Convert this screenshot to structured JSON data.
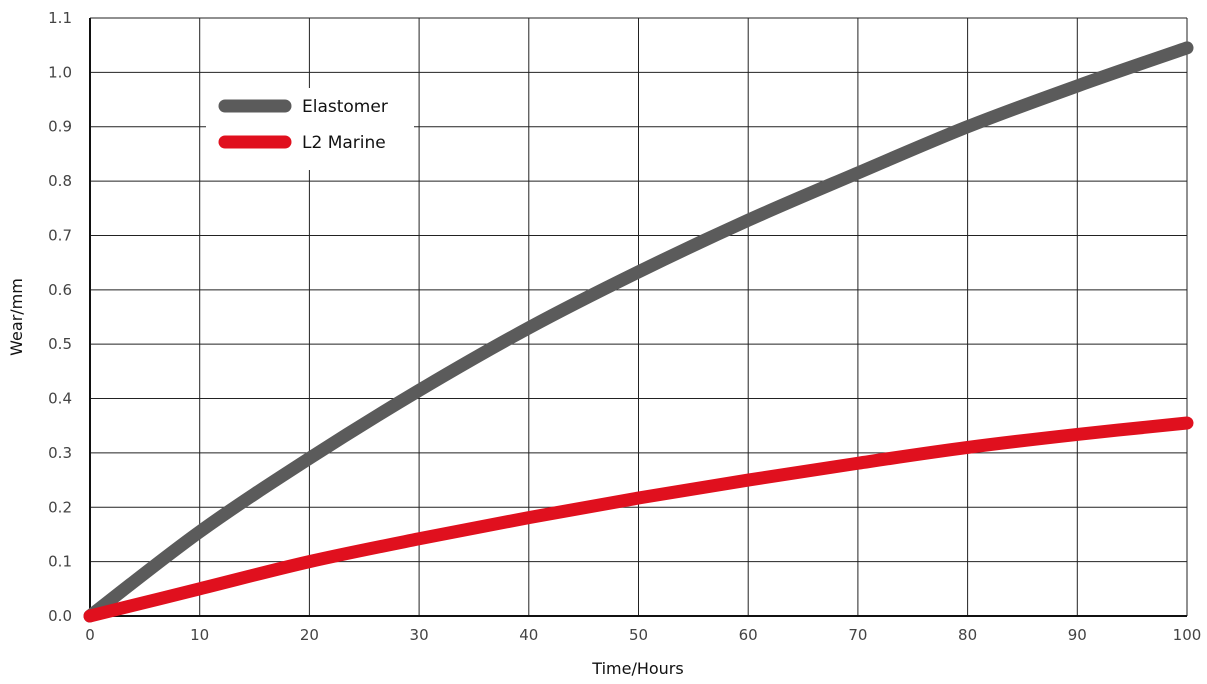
{
  "chart_data": {
    "type": "line",
    "xlabel": "Time/Hours",
    "ylabel": "Wear/mm",
    "xlim": [
      0,
      100
    ],
    "ylim": [
      0,
      1.1
    ],
    "xticks": [
      "0",
      "10",
      "20",
      "30",
      "40",
      "50",
      "60",
      "70",
      "80",
      "90",
      "100"
    ],
    "yticks": [
      "0.0",
      "0.1",
      "0.2",
      "0.3",
      "0.4",
      "0.5",
      "0.6",
      "0.7",
      "0.8",
      "0.9",
      "1.0",
      "1.1"
    ],
    "grid": true,
    "legend_position": "top-left",
    "x": [
      0,
      10,
      20,
      30,
      40,
      50,
      60,
      70,
      80,
      90,
      100
    ],
    "series": [
      {
        "name": "Elastomer",
        "color": "#5b5b5b",
        "values": [
          0.0,
          0.155,
          0.29,
          0.415,
          0.53,
          0.633,
          0.728,
          0.815,
          0.9,
          0.975,
          1.045
        ]
      },
      {
        "name": "L2 Marine",
        "color": "#e0101e",
        "values": [
          0.0,
          0.05,
          0.1,
          0.142,
          0.181,
          0.217,
          0.25,
          0.281,
          0.31,
          0.334,
          0.355
        ]
      }
    ]
  }
}
